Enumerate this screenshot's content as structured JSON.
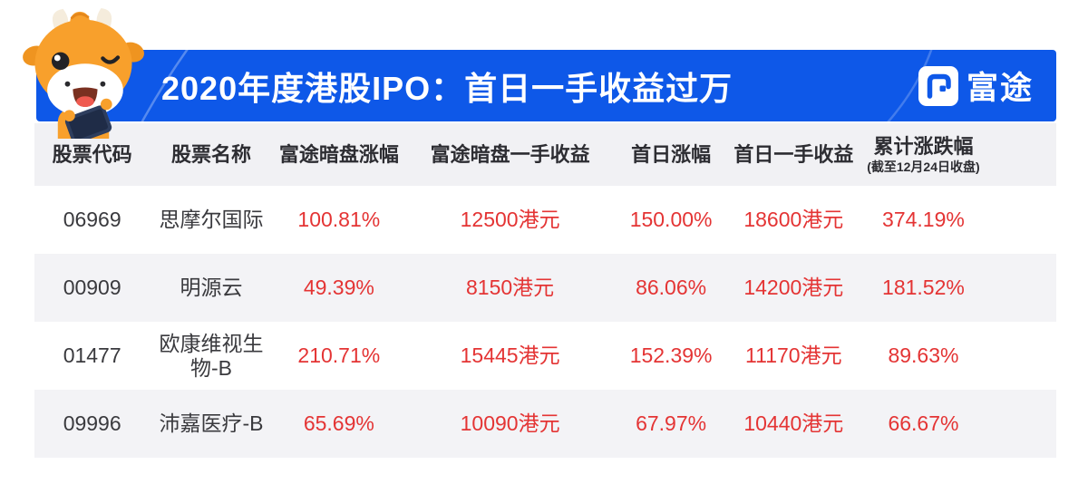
{
  "banner": {
    "title": "2020年度港股IPO：首日一手收益过万",
    "brand": "富途"
  },
  "mascot": "futu-bull-winking-with-phone",
  "table": {
    "columns": [
      {
        "label": "股票代码"
      },
      {
        "label": "股票名称"
      },
      {
        "label": "富途暗盘涨幅"
      },
      {
        "label": "富途暗盘一手收益"
      },
      {
        "label": "首日涨幅"
      },
      {
        "label": "首日一手收益"
      },
      {
        "label": "累计涨跌幅",
        "sublabel": "(截至12月24日收盘)"
      }
    ],
    "rows": [
      {
        "cells": [
          "06969",
          "思摩尔国际",
          "100.81%",
          "12500港元",
          "150.00%",
          "18600港元",
          "374.19%"
        ]
      },
      {
        "cells": [
          "00909",
          "明源云",
          "49.39%",
          "8150港元",
          "86.06%",
          "14200港元",
          "181.52%"
        ]
      },
      {
        "cells": [
          "01477",
          "欧康维视生物-B",
          "210.71%",
          "15445港元",
          "152.39%",
          "11170港元",
          "89.63%"
        ]
      },
      {
        "cells": [
          "09996",
          "沛嘉医疗-B",
          "65.69%",
          "10090港元",
          "67.97%",
          "10440港元",
          "66.67%"
        ]
      }
    ]
  },
  "colors": {
    "accent_blue": "#0e58e8",
    "value_red": "#e43434",
    "text_dark": "#3a3a3e",
    "stripe_gray": "#f3f3f6"
  }
}
